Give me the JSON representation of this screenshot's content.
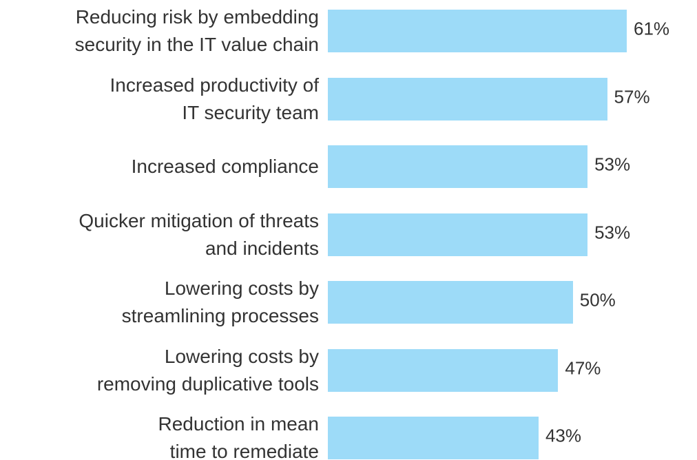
{
  "chart_data": {
    "type": "bar",
    "orientation": "horizontal",
    "categories": [
      "Reducing risk by embedding\nsecurity in the IT value chain",
      "Increased productivity of\nIT security team",
      "Increased compliance",
      "Quicker mitigation of threats\nand incidents",
      "Lowering costs by\nstreamlining processes",
      "Lowering costs by\nremoving duplicative tools",
      "Reduction in mean\ntime to remediate"
    ],
    "values": [
      61,
      57,
      53,
      53,
      50,
      47,
      43
    ],
    "value_labels": [
      "61%",
      "57%",
      "53%",
      "53%",
      "50%",
      "47%",
      "43%"
    ],
    "color": "#9ddbf8"
  }
}
